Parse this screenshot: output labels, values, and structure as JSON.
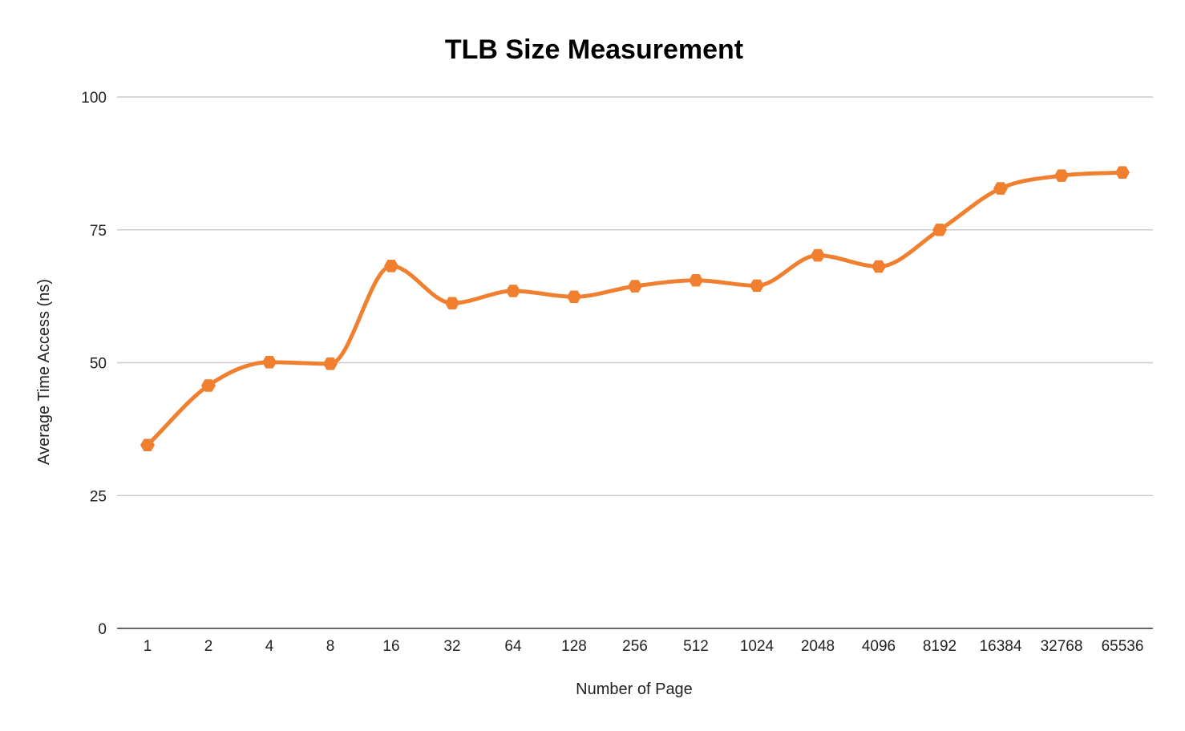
{
  "chart_data": {
    "type": "line",
    "title": "TLB Size Measurement",
    "xlabel": "Number of Page",
    "ylabel": "Average Time Access (ns)",
    "categories": [
      "1",
      "2",
      "4",
      "8",
      "16",
      "32",
      "64",
      "128",
      "256",
      "512",
      "1024",
      "2048",
      "4096",
      "8192",
      "16384",
      "32768",
      "65536"
    ],
    "series": [
      {
        "values": [
          34.5,
          45.7,
          50.1,
          49.8,
          68.2,
          61.2,
          63.5,
          62.4,
          64.4,
          65.5,
          64.5,
          70.2,
          68.1,
          75.0,
          82.8,
          85.2,
          85.8
        ],
        "color": "#f08030"
      }
    ],
    "ylim": [
      0,
      100
    ],
    "yticks": [
      0,
      25,
      50,
      75,
      100
    ],
    "grid": true,
    "legend": "none",
    "marker": "hexagon",
    "smooth": true
  }
}
